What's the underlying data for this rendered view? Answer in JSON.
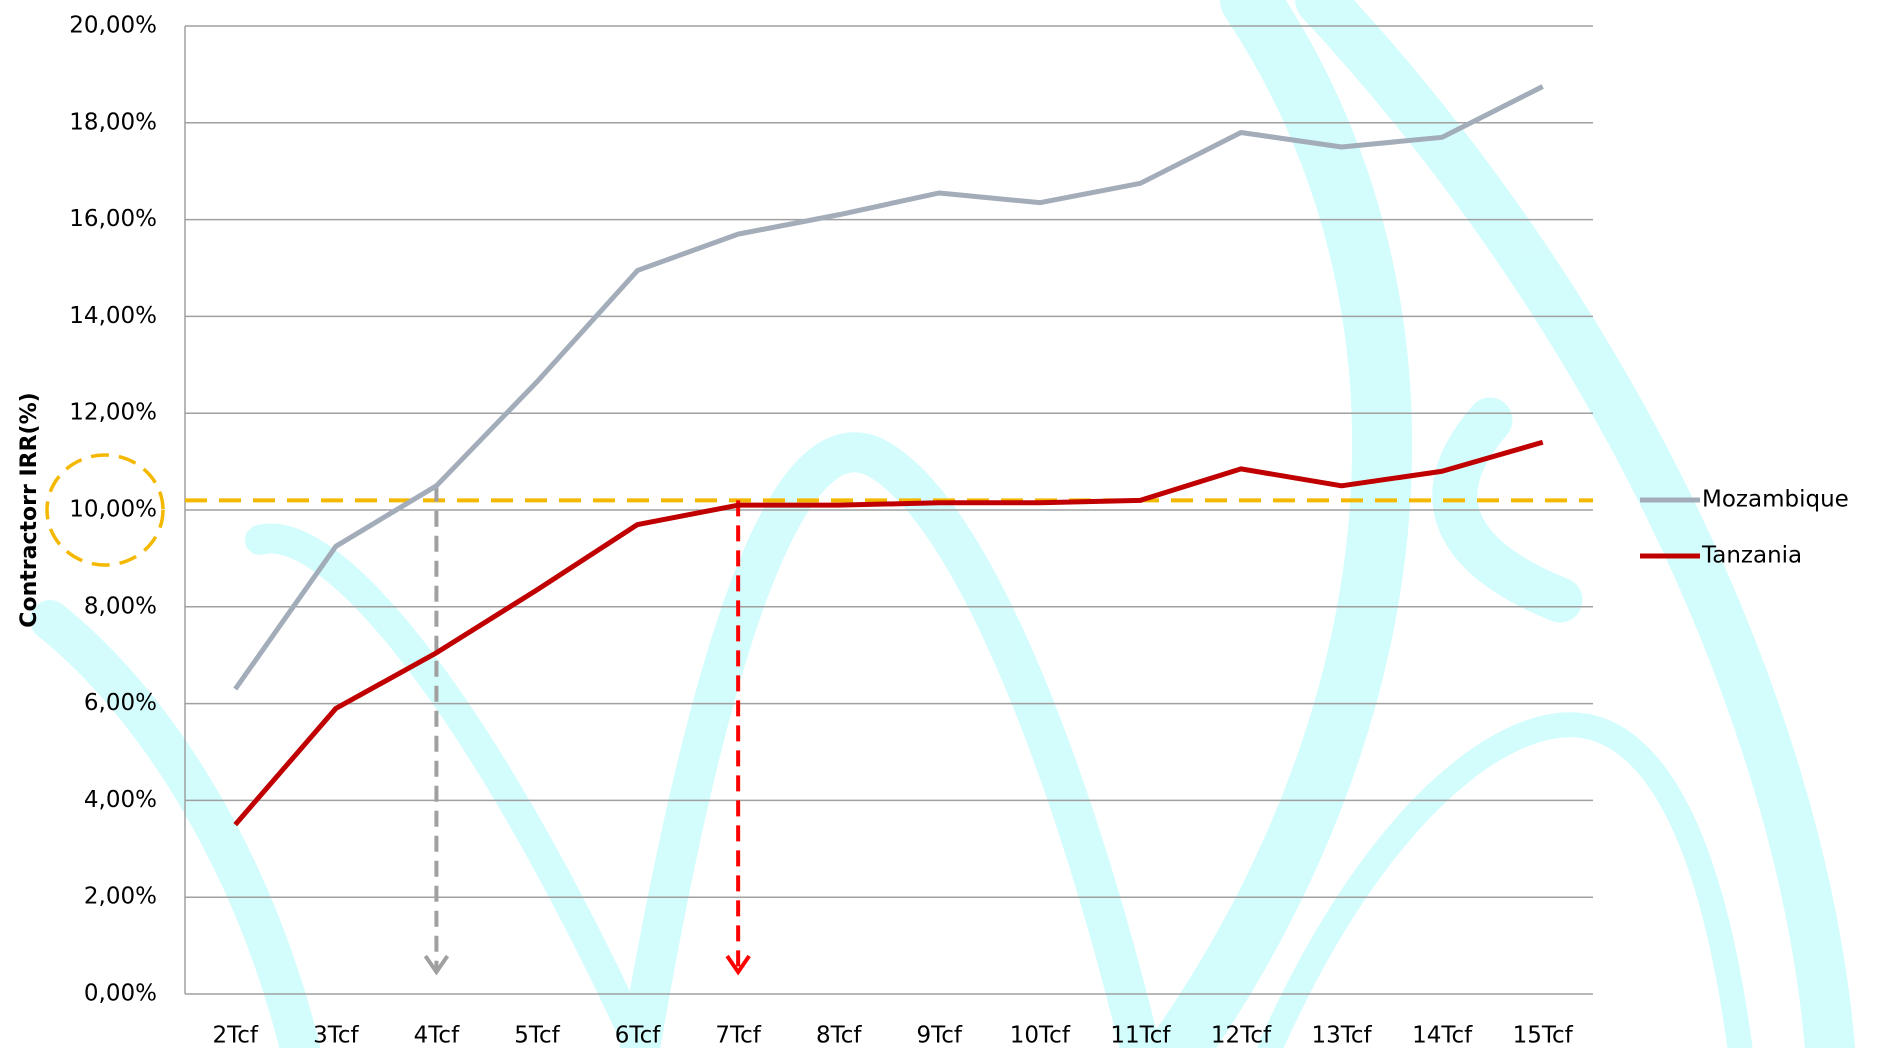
{
  "chart_data": {
    "type": "line",
    "y_axis_label": "Contractorr IRR(%)",
    "categories": [
      "2Tcf",
      "3Tcf",
      "4Tcf",
      "5Tcf",
      "6Tcf",
      "7Tcf",
      "8Tcf",
      "9Tcf",
      "10Tcf",
      "11Tcf",
      "12Tcf",
      "13Tcf",
      "14Tcf",
      "15Tcf"
    ],
    "series": [
      {
        "name": "Mozambique",
        "color": "#a3acb9",
        "values": [
          6.3,
          9.25,
          10.5,
          12.65,
          14.95,
          15.7,
          16.1,
          16.55,
          16.35,
          16.75,
          17.8,
          17.5,
          17.7,
          18.75
        ]
      },
      {
        "name": "Tanzania",
        "color": "#c00000",
        "values": [
          3.5,
          5.9,
          7.05,
          8.35,
          9.7,
          10.1,
          10.1,
          10.15,
          10.15,
          10.2,
          10.85,
          10.5,
          10.8,
          11.4
        ]
      }
    ],
    "reference_line": {
      "value": 10.2,
      "color": "#f5b800"
    },
    "ylim": [
      0,
      20
    ],
    "yticks": [
      {
        "value": 0,
        "label": "0,00%"
      },
      {
        "value": 2,
        "label": "2,00%"
      },
      {
        "value": 4,
        "label": "4,00%"
      },
      {
        "value": 6,
        "label": "6,00%"
      },
      {
        "value": 8,
        "label": "8,00%"
      },
      {
        "value": 10,
        "label": "10,00%"
      },
      {
        "value": 12,
        "label": "12,00%"
      },
      {
        "value": 14,
        "label": "14,00%"
      },
      {
        "value": 16,
        "label": "16,00%"
      },
      {
        "value": 18,
        "label": "18,00%"
      },
      {
        "value": 20,
        "label": "20,00%"
      }
    ],
    "grid": true,
    "legend": "right"
  }
}
